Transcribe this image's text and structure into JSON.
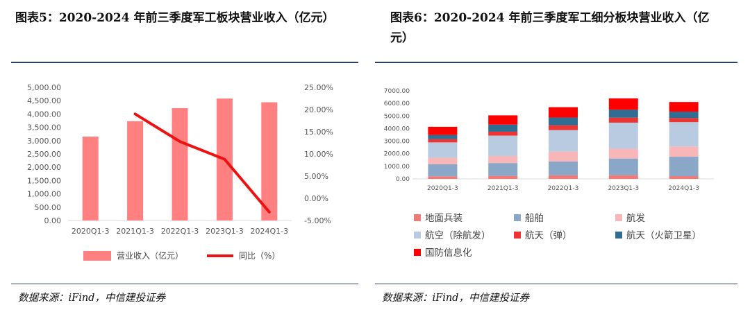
{
  "left": {
    "figure_label": "图表5：",
    "title": "2020-2024  年前三季度军工板块营业收入（亿元）",
    "source": "数据来源：iFind，中信建投证券"
  },
  "right": {
    "figure_label": "图表6：",
    "title": "2020-2024  年前三季度军工细分板块营业收入（亿元）",
    "source": "数据来源：iFind，中信建投证券"
  },
  "chart_data": [
    {
      "type": "bar",
      "categories": [
        "2020Q1-3",
        "2021Q1-3",
        "2022Q1-3",
        "2023Q1-3",
        "2024Q1-3"
      ],
      "series": [
        {
          "name": "营业收入（亿元）",
          "kind": "bar",
          "axis": "left",
          "color": "#ff8080",
          "values": [
            3150,
            3730,
            4220,
            4580,
            4440
          ]
        },
        {
          "name": "同比（%）",
          "kind": "line",
          "axis": "right",
          "color": "#ee1111",
          "values": [
            null,
            19.0,
            12.8,
            8.8,
            -3.1
          ]
        }
      ],
      "y_left": {
        "min": 0,
        "max": 5000,
        "ticks": [
          "0.00",
          "500.00",
          "1,000.00",
          "1,500.00",
          "2,000.00",
          "2,500.00",
          "3,000.00",
          "3,500.00",
          "4,000.00",
          "4,500.00",
          "5,000.00"
        ]
      },
      "y_right": {
        "min": -5,
        "max": 25,
        "ticks": [
          "-5.00%",
          "0.00%",
          "5.00%",
          "10.00%",
          "15.00%",
          "20.00%",
          "25.00%"
        ]
      },
      "legend_position": "bottom",
      "grid": false
    },
    {
      "type": "bar",
      "stacked": true,
      "categories": [
        "2020Q1-3",
        "2021Q1-3",
        "2022Q1-3",
        "2023Q1-3",
        "2024Q1-3"
      ],
      "series": [
        {
          "name": "地面兵装",
          "color": "#f07a78",
          "values": [
            200,
            240,
            280,
            290,
            220
          ]
        },
        {
          "name": "船舶",
          "color": "#8aa7c8",
          "values": [
            960,
            1020,
            1100,
            1330,
            1540
          ]
        },
        {
          "name": "航发",
          "color": "#f9b6b8",
          "values": [
            520,
            560,
            780,
            780,
            820
          ]
        },
        {
          "name": "航空（除航发）",
          "color": "#b8cbe0",
          "values": [
            1220,
            1620,
            1720,
            2070,
            1930
          ]
        },
        {
          "name": "航天（弹）",
          "color": "#ee3333",
          "values": [
            260,
            310,
            380,
            400,
            320
          ]
        },
        {
          "name": "航天（火箭卫星）",
          "color": "#2f6d93",
          "values": [
            330,
            560,
            620,
            630,
            510
          ]
        },
        {
          "name": "国防信息化",
          "color": "#ff0000",
          "values": [
            650,
            740,
            820,
            900,
            770
          ]
        }
      ],
      "y": {
        "min": 0,
        "max": 7000,
        "ticks": [
          "0.00",
          "1000.00",
          "2000.00",
          "3000.00",
          "4000.00",
          "5000.00",
          "6000.00",
          "7000.00"
        ]
      },
      "legend_position": "bottom",
      "grid": false
    }
  ]
}
